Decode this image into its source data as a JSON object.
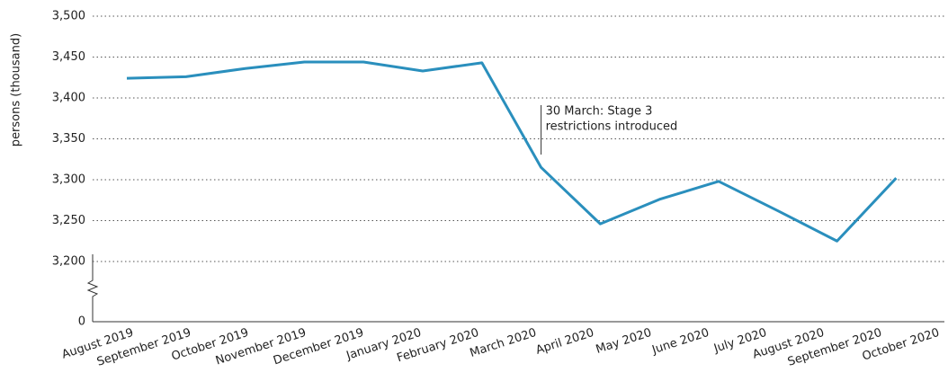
{
  "chart_data": {
    "type": "line",
    "y_label": "persons (thousand)",
    "categories": [
      "August 2019",
      "September 2019",
      "October 2019",
      "November 2019",
      "December 2019",
      "January 2020",
      "February 2020",
      "March 2020",
      "April 2020",
      "May 2020",
      "June 2020",
      "July 2020",
      "August 2020",
      "September 2020",
      "October 2020"
    ],
    "series": [
      {
        "color": "#2a8fbd",
        "values": [
          3424,
          3426,
          3436,
          3444,
          3444,
          3433,
          3443,
          3315,
          3246,
          3276,
          3298,
          3262,
          3225,
          3302,
          null
        ]
      }
    ],
    "ylim": [
      3200,
      3500
    ],
    "yticks": [
      {
        "value": 3200,
        "label": "3,200"
      },
      {
        "value": 3250,
        "label": "3,250"
      },
      {
        "value": 3300,
        "label": "3,300"
      },
      {
        "value": 3350,
        "label": "3,350"
      },
      {
        "value": 3400,
        "label": "3,400"
      },
      {
        "value": 3450,
        "label": "3,450"
      },
      {
        "value": 3500,
        "label": "3,500"
      }
    ],
    "axis_break_tick": 0,
    "grid": true,
    "annotation": {
      "category": "March 2020",
      "lines": [
        "30 March: Stage 3",
        "restrictions introduced"
      ]
    }
  }
}
